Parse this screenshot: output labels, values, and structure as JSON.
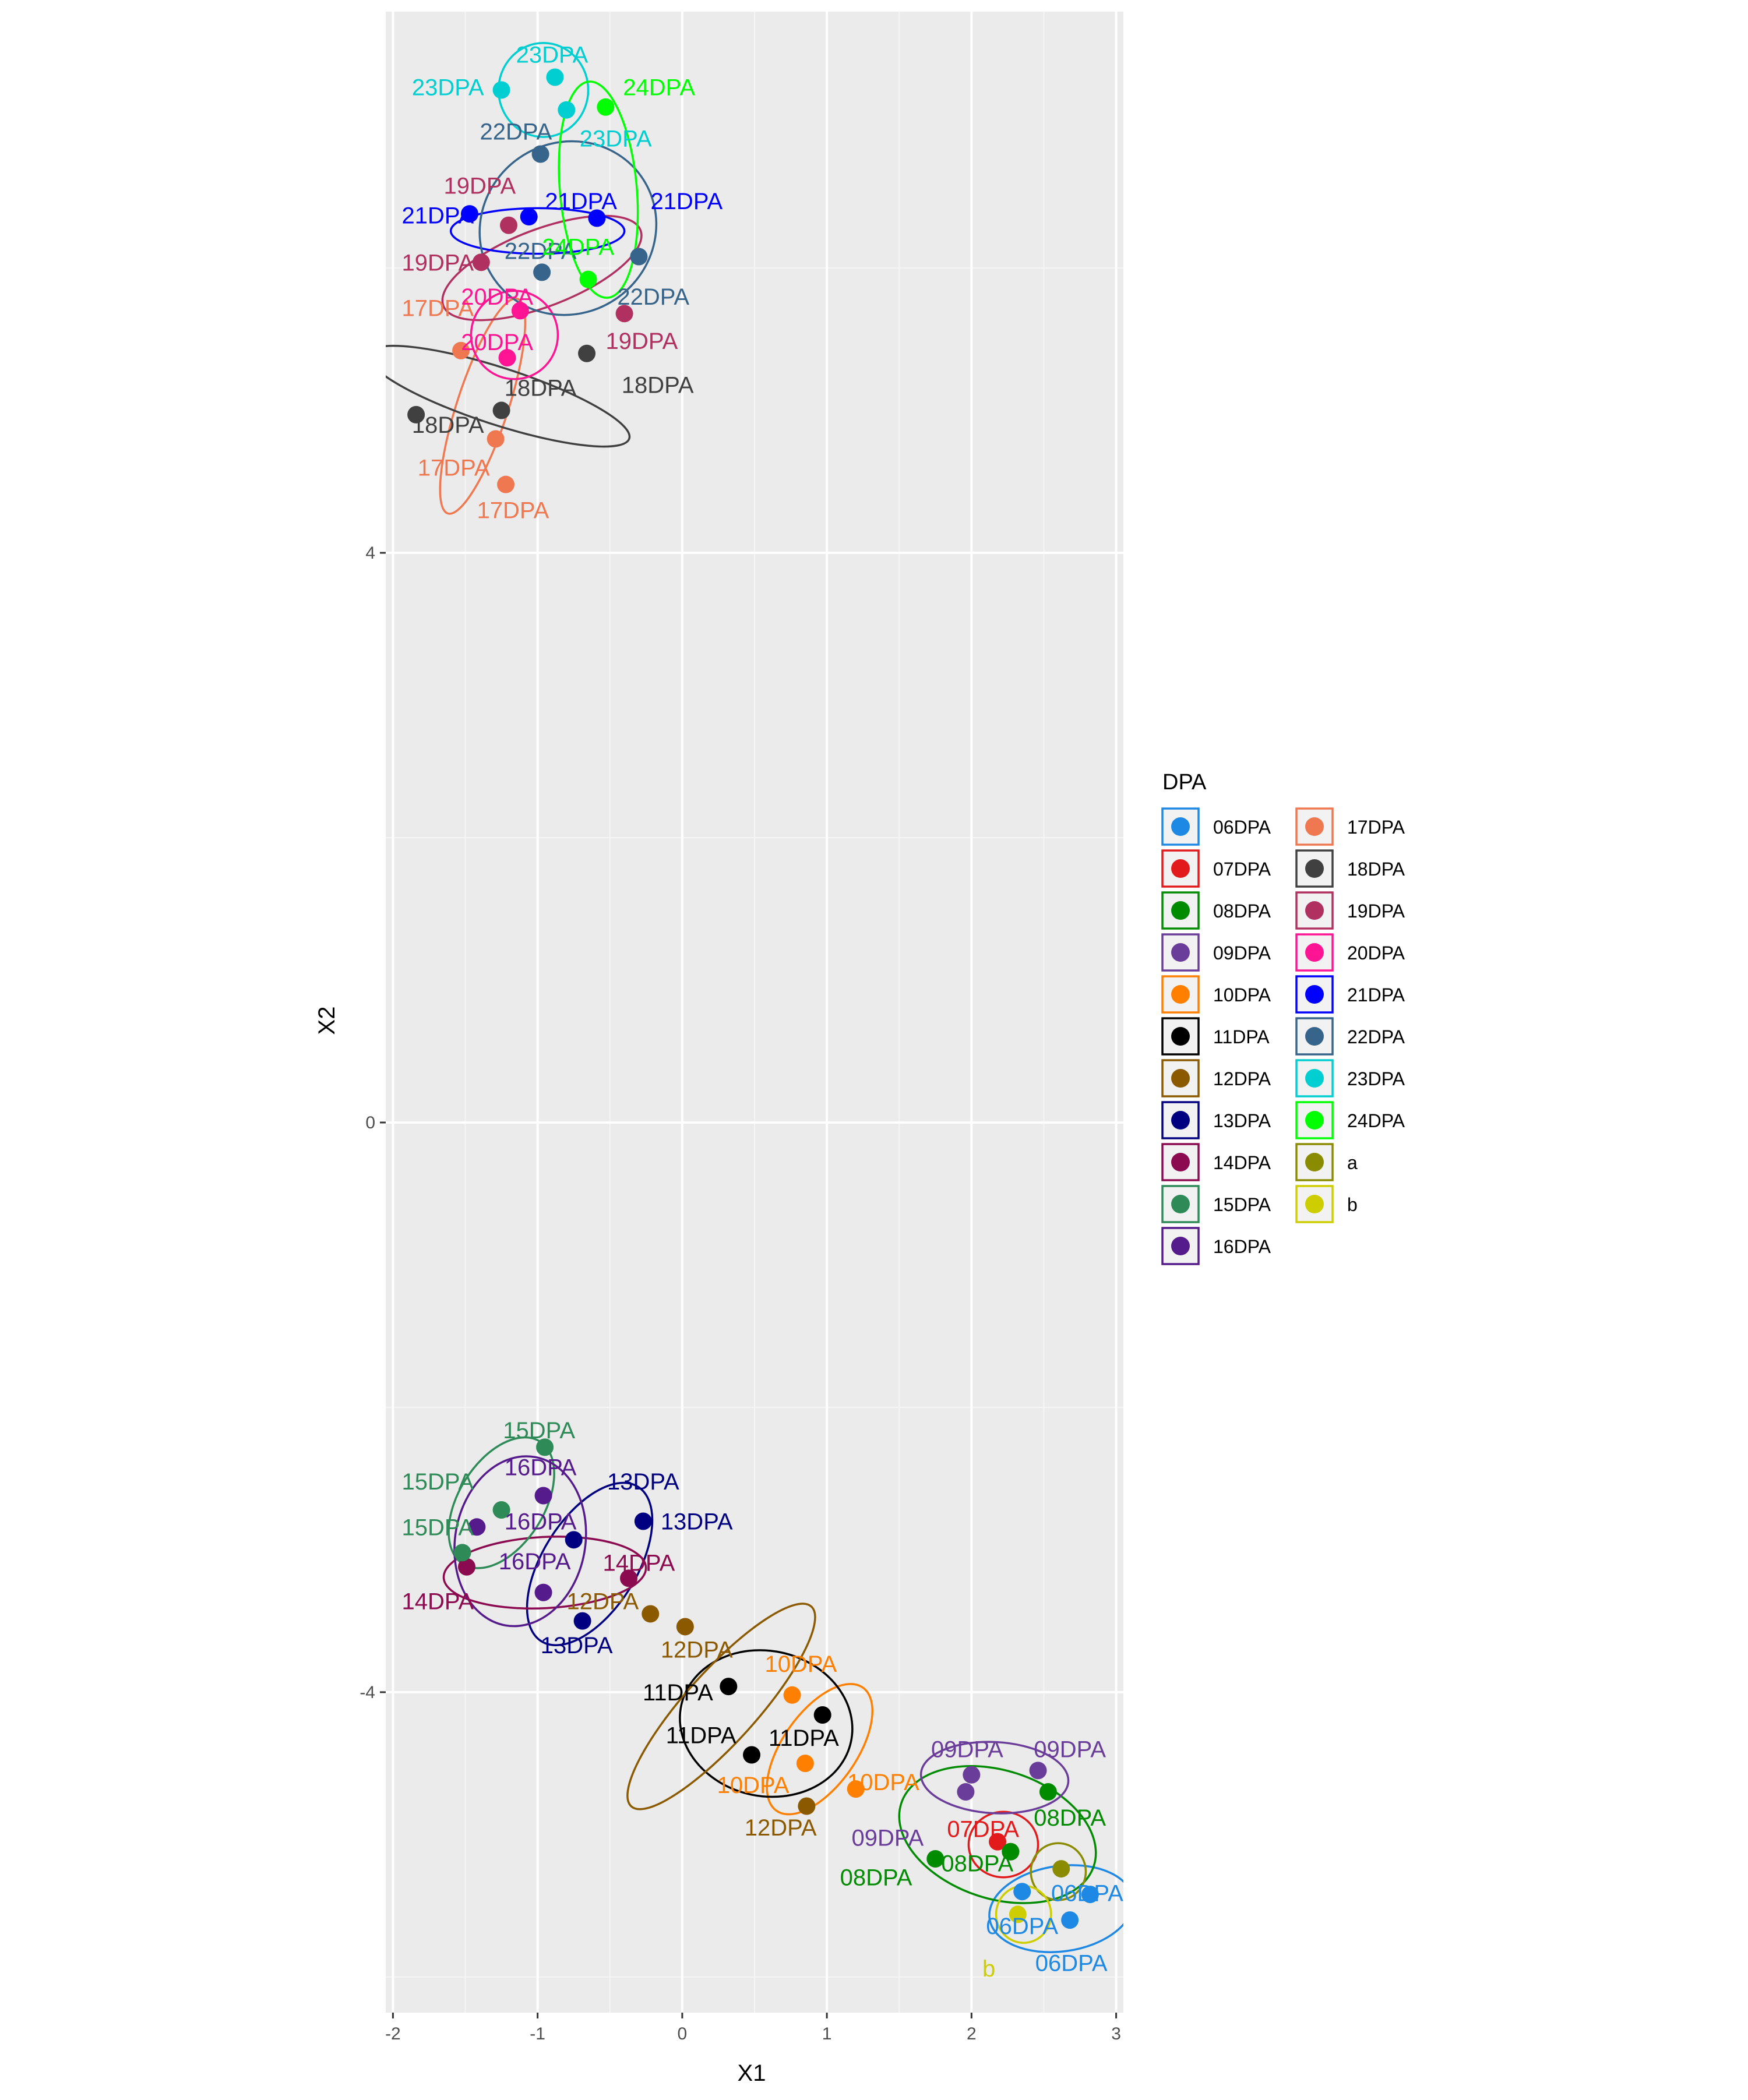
{
  "chart_data": {
    "type": "scatter",
    "title": "",
    "xlabel": "X1",
    "ylabel": "X2",
    "xlim": [
      -2.05,
      3.05
    ],
    "ylim": [
      -6.25,
      7.8
    ],
    "x_ticks": [
      -2,
      -1,
      0,
      1,
      2,
      3
    ],
    "x_tick_labels": [
      "-2",
      "-1",
      "0",
      "1",
      "2",
      "3"
    ],
    "y_ticks": [
      -4,
      0,
      4
    ],
    "y_tick_labels": [
      "-4",
      "0",
      "4"
    ],
    "grid": true,
    "legend": {
      "title": "DPA",
      "position": "right",
      "columns": 2
    },
    "series": [
      {
        "name": "06DPA",
        "color": "#1E88E5",
        "points": [
          [
            2.35,
            -5.4
          ],
          [
            2.82,
            -5.42
          ],
          [
            2.68,
            -5.6
          ]
        ]
      },
      {
        "name": "07DPA",
        "color": "#E31A1C",
        "points": [
          [
            2.18,
            -5.05
          ],
          [
            2.27,
            -5.12
          ]
        ]
      },
      {
        "name": "08DPA",
        "color": "#008B00",
        "points": [
          [
            1.75,
            -5.17
          ],
          [
            2.27,
            -5.12
          ],
          [
            2.53,
            -4.7
          ]
        ]
      },
      {
        "name": "09DPA",
        "color": "#6A3D9A",
        "points": [
          [
            2.0,
            -4.58
          ],
          [
            2.46,
            -4.55
          ],
          [
            1.96,
            -4.7
          ]
        ]
      },
      {
        "name": "10DPA",
        "color": "#FF7F00",
        "points": [
          [
            0.76,
            -4.02
          ],
          [
            1.2,
            -4.68
          ],
          [
            0.85,
            -4.5
          ]
        ]
      },
      {
        "name": "11DPA",
        "color": "#000000",
        "points": [
          [
            0.32,
            -3.96
          ],
          [
            0.97,
            -4.16
          ],
          [
            0.48,
            -4.44
          ]
        ]
      },
      {
        "name": "12DPA",
        "color": "#8B5A00",
        "points": [
          [
            -0.22,
            -3.45
          ],
          [
            0.02,
            -3.54
          ],
          [
            0.86,
            -4.8
          ]
        ]
      },
      {
        "name": "13DPA",
        "color": "#000080",
        "points": [
          [
            -0.27,
            -2.8
          ],
          [
            -0.75,
            -2.93
          ],
          [
            -0.69,
            -3.5
          ]
        ]
      },
      {
        "name": "14DPA",
        "color": "#8B0A50",
        "points": [
          [
            -1.49,
            -3.12
          ],
          [
            -0.37,
            -3.2
          ]
        ]
      },
      {
        "name": "15DPA",
        "color": "#2E8B57",
        "points": [
          [
            -0.95,
            -2.28
          ],
          [
            -1.25,
            -2.72
          ],
          [
            -1.52,
            -3.02
          ]
        ]
      },
      {
        "name": "16DPA",
        "color": "#551A8B",
        "points": [
          [
            -0.96,
            -2.62
          ],
          [
            -1.42,
            -2.84
          ],
          [
            -0.96,
            -3.3
          ]
        ]
      },
      {
        "name": "17DPA",
        "color": "#F07850",
        "points": [
          [
            -1.53,
            5.42
          ],
          [
            -1.29,
            4.8
          ],
          [
            -1.22,
            4.48
          ]
        ]
      },
      {
        "name": "18DPA",
        "color": "#404040",
        "points": [
          [
            -1.84,
            4.97
          ],
          [
            -1.25,
            5.0
          ],
          [
            -0.66,
            5.4
          ]
        ]
      },
      {
        "name": "19DPA",
        "color": "#B03060",
        "points": [
          [
            -1.39,
            6.04
          ],
          [
            -1.2,
            6.3
          ],
          [
            -0.4,
            5.68
          ]
        ]
      },
      {
        "name": "20DPA",
        "color": "#FF1493",
        "points": [
          [
            -1.12,
            5.7
          ],
          [
            -1.21,
            5.37
          ]
        ]
      },
      {
        "name": "21DPA",
        "color": "#0000FF",
        "points": [
          [
            -1.47,
            6.38
          ],
          [
            -1.06,
            6.36
          ],
          [
            -0.59,
            6.35
          ]
        ]
      },
      {
        "name": "22DPA",
        "color": "#36648B",
        "points": [
          [
            -0.98,
            6.8
          ],
          [
            -0.97,
            5.97
          ],
          [
            -0.3,
            6.08
          ]
        ]
      },
      {
        "name": "23DPA",
        "color": "#00CED1",
        "points": [
          [
            -1.25,
            7.25
          ],
          [
            -0.88,
            7.34
          ],
          [
            -0.8,
            7.11
          ]
        ]
      },
      {
        "name": "24DPA",
        "color": "#00FF00",
        "points": [
          [
            -0.53,
            7.13
          ],
          [
            -0.65,
            5.92
          ]
        ]
      },
      {
        "name": "a",
        "color": "#8B8B00",
        "points": [
          [
            2.62,
            -5.24
          ]
        ]
      },
      {
        "name": "b",
        "color": "#CDCD00",
        "points": [
          [
            2.32,
            -5.56
          ]
        ]
      }
    ],
    "annotations": [
      {
        "text": "06DPA",
        "x": 2.8,
        "y": -5.41,
        "color": "#1E88E5"
      },
      {
        "text": "06DPA",
        "x": 2.35,
        "y": -5.64,
        "color": "#1E88E5"
      },
      {
        "text": "06DPA",
        "x": 2.69,
        "y": -5.9,
        "color": "#1E88E5"
      },
      {
        "text": "07DPA",
        "x": 2.08,
        "y": -4.96,
        "color": "#E31A1C"
      },
      {
        "text": "08DPA",
        "x": 1.34,
        "y": -5.3,
        "color": "#008B00"
      },
      {
        "text": "08DPA",
        "x": 2.04,
        "y": -5.2,
        "color": "#008B00"
      },
      {
        "text": "08DPA",
        "x": 2.68,
        "y": -4.88,
        "color": "#008B00"
      },
      {
        "text": "09DPA",
        "x": 1.97,
        "y": -4.4,
        "color": "#6A3D9A"
      },
      {
        "text": "09DPA",
        "x": 2.68,
        "y": -4.4,
        "color": "#6A3D9A"
      },
      {
        "text": "09DPA",
        "x": 1.42,
        "y": -5.02,
        "color": "#6A3D9A"
      },
      {
        "text": "10DPA",
        "x": 0.82,
        "y": -3.8,
        "color": "#FF7F00"
      },
      {
        "text": "10DPA",
        "x": 1.39,
        "y": -4.63,
        "color": "#FF7F00"
      },
      {
        "text": "10DPA",
        "x": 0.49,
        "y": -4.65,
        "color": "#FF7F00"
      },
      {
        "text": "11DPA",
        "x": -0.03,
        "y": -4.0,
        "color": "#000000"
      },
      {
        "text": "11DPA",
        "x": 0.13,
        "y": -4.3,
        "color": "#000000"
      },
      {
        "text": "11DPA",
        "x": 0.84,
        "y": -4.32,
        "color": "#000000"
      },
      {
        "text": "12DPA",
        "x": -0.55,
        "y": -3.36,
        "color": "#8B5A00"
      },
      {
        "text": "12DPA",
        "x": 0.1,
        "y": -3.7,
        "color": "#8B5A00"
      },
      {
        "text": "12DPA",
        "x": 0.68,
        "y": -4.95,
        "color": "#8B5A00"
      },
      {
        "text": "13DPA",
        "x": -0.27,
        "y": -2.52,
        "color": "#000080"
      },
      {
        "text": "13DPA",
        "x": 0.1,
        "y": -2.8,
        "color": "#000080"
      },
      {
        "text": "13DPA",
        "x": -0.73,
        "y": -3.67,
        "color": "#000080"
      },
      {
        "text": "14DPA",
        "x": -0.3,
        "y": -3.09,
        "color": "#8B0A50"
      },
      {
        "text": "14DPA",
        "x": -1.69,
        "y": -3.36,
        "color": "#8B0A50"
      },
      {
        "text": "15DPA",
        "x": -0.99,
        "y": -2.16,
        "color": "#2E8B57"
      },
      {
        "text": "15DPA",
        "x": -1.69,
        "y": -2.52,
        "color": "#2E8B57"
      },
      {
        "text": "15DPA",
        "x": -1.69,
        "y": -2.84,
        "color": "#2E8B57"
      },
      {
        "text": "16DPA",
        "x": -0.98,
        "y": -2.42,
        "color": "#551A8B"
      },
      {
        "text": "16DPA",
        "x": -0.98,
        "y": -2.8,
        "color": "#551A8B"
      },
      {
        "text": "16DPA",
        "x": -1.02,
        "y": -3.08,
        "color": "#551A8B"
      },
      {
        "text": "17DPA",
        "x": -1.69,
        "y": 5.72,
        "color": "#F07850"
      },
      {
        "text": "17DPA",
        "x": -1.58,
        "y": 4.6,
        "color": "#F07850"
      },
      {
        "text": "17DPA",
        "x": -1.17,
        "y": 4.3,
        "color": "#F07850"
      },
      {
        "text": "18DPA",
        "x": -1.62,
        "y": 4.9,
        "color": "#404040"
      },
      {
        "text": "18DPA",
        "x": -0.98,
        "y": 5.16,
        "color": "#404040"
      },
      {
        "text": "18DPA",
        "x": -0.17,
        "y": 5.18,
        "color": "#404040"
      },
      {
        "text": "19DPA",
        "x": -1.4,
        "y": 6.58,
        "color": "#B03060"
      },
      {
        "text": "19DPA",
        "x": -1.69,
        "y": 6.04,
        "color": "#B03060"
      },
      {
        "text": "19DPA",
        "x": -0.28,
        "y": 5.49,
        "color": "#B03060"
      },
      {
        "text": "20DPA",
        "x": -1.28,
        "y": 5.8,
        "color": "#FF1493"
      },
      {
        "text": "20DPA",
        "x": -1.28,
        "y": 5.48,
        "color": "#FF1493"
      },
      {
        "text": "21DPA",
        "x": -1.69,
        "y": 6.37,
        "color": "#0000FF"
      },
      {
        "text": "21DPA",
        "x": -0.7,
        "y": 6.47,
        "color": "#0000FF"
      },
      {
        "text": "21DPA",
        "x": 0.03,
        "y": 6.47,
        "color": "#0000FF"
      },
      {
        "text": "22DPA",
        "x": -1.15,
        "y": 6.96,
        "color": "#36648B"
      },
      {
        "text": "22DPA",
        "x": -0.98,
        "y": 6.12,
        "color": "#36648B"
      },
      {
        "text": "22DPA",
        "x": -0.2,
        "y": 5.8,
        "color": "#36648B"
      },
      {
        "text": "23DPA",
        "x": -1.62,
        "y": 7.27,
        "color": "#00CED1"
      },
      {
        "text": "23DPA",
        "x": -0.9,
        "y": 7.5,
        "color": "#00CED1"
      },
      {
        "text": "23DPA",
        "x": -0.46,
        "y": 6.91,
        "color": "#00CED1"
      },
      {
        "text": "24DPA",
        "x": -0.16,
        "y": 7.27,
        "color": "#00FF00"
      },
      {
        "text": "24DPA",
        "x": -0.72,
        "y": 6.15,
        "color": "#00FF00"
      },
      {
        "text": "b",
        "x": 2.12,
        "y": -5.94,
        "color": "#CDCD00"
      }
    ],
    "ellipses": [
      {
        "series": "06DPA",
        "cx": 2.62,
        "cy": -5.52,
        "rx": 0.5,
        "ry": 0.3,
        "rot": -8
      },
      {
        "series": "07DPA",
        "cx": 2.22,
        "cy": -5.07,
        "rx": 0.24,
        "ry": 0.23,
        "rot": 0
      },
      {
        "series": "08DPA",
        "cx": 2.18,
        "cy": -5.0,
        "rx": 0.7,
        "ry": 0.45,
        "rot": 18
      },
      {
        "series": "09DPA",
        "cx": 2.16,
        "cy": -4.6,
        "rx": 0.51,
        "ry": 0.25,
        "rot": 3
      },
      {
        "series": "10DPA",
        "cx": 0.95,
        "cy": -4.4,
        "rx": 0.52,
        "ry": 0.26,
        "rot": -55
      },
      {
        "series": "11DPA",
        "cx": 0.58,
        "cy": -4.22,
        "rx": 0.6,
        "ry": 0.51,
        "rot": 12
      },
      {
        "series": "12DPA",
        "cx": 0.27,
        "cy": -4.1,
        "rx": 0.93,
        "ry": 0.25,
        "rot": -48
      },
      {
        "series": "13DPA",
        "cx": -0.64,
        "cy": -3.1,
        "rx": 0.63,
        "ry": 0.33,
        "rot": -58
      },
      {
        "series": "14DPA",
        "cx": -0.95,
        "cy": -3.16,
        "rx": 0.7,
        "ry": 0.25,
        "rot": -3
      },
      {
        "series": "15DPA",
        "cx": -1.25,
        "cy": -2.67,
        "rx": 0.5,
        "ry": 0.3,
        "rot": -58
      },
      {
        "series": "16DPA",
        "cx": -1.12,
        "cy": -2.94,
        "rx": 0.45,
        "ry": 0.6,
        "rot": 10
      },
      {
        "series": "17DPA",
        "cx": -1.38,
        "cy": 5.03,
        "rx": 0.78,
        "ry": 0.18,
        "rot": -72
      },
      {
        "series": "18DPA",
        "cx": -1.27,
        "cy": 5.1,
        "rx": 0.95,
        "ry": 0.2,
        "rot": 18
      },
      {
        "series": "19DPA",
        "cx": -0.97,
        "cy": 6.0,
        "rx": 0.73,
        "ry": 0.27,
        "rot": -21
      },
      {
        "series": "20DPA",
        "cx": -1.16,
        "cy": 5.53,
        "rx": 0.3,
        "ry": 0.31,
        "rot": 0
      },
      {
        "series": "21DPA",
        "cx": -1.0,
        "cy": 6.26,
        "rx": 0.6,
        "ry": 0.16,
        "rot": 0
      },
      {
        "series": "22DPA",
        "cx": -0.79,
        "cy": 6.28,
        "rx": 0.62,
        "ry": 0.6,
        "rot": -35
      },
      {
        "series": "23DPA",
        "cx": -0.96,
        "cy": 7.25,
        "rx": 0.31,
        "ry": 0.33,
        "rot": 0
      },
      {
        "series": "24DPA",
        "cx": -0.58,
        "cy": 6.55,
        "rx": 0.75,
        "ry": 0.27,
        "rot": 85
      },
      {
        "series": "a",
        "cx": 2.6,
        "cy": -5.26,
        "rx": 0.19,
        "ry": 0.2,
        "rot": 0
      },
      {
        "series": "b",
        "cx": 2.36,
        "cy": -5.56,
        "rx": 0.19,
        "ry": 0.2,
        "rot": 0
      }
    ]
  }
}
